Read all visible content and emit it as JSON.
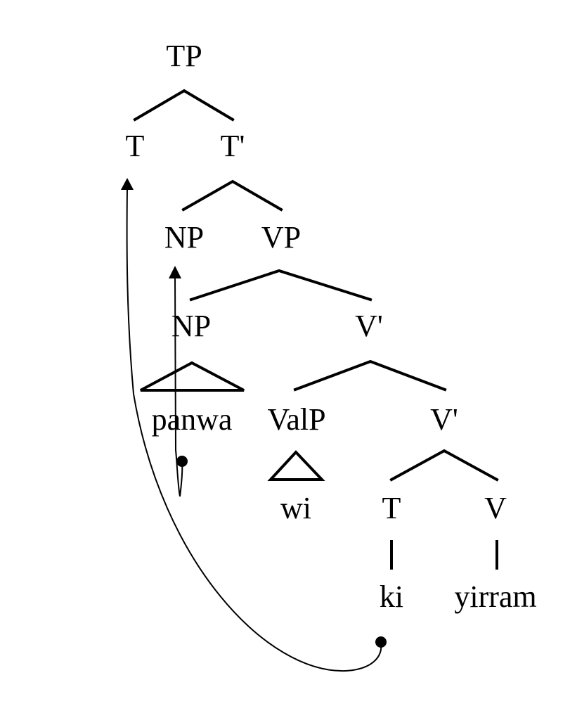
{
  "tree": {
    "nodes": {
      "tp": "TP",
      "t_head": "T",
      "t_bar": "T'",
      "np_upper": "NP",
      "vp": "VP",
      "np_lower": "NP",
      "v_bar_upper": "V'",
      "valp": "ValP",
      "v_bar_lower": "V'",
      "t_lower": "T",
      "v": "V"
    },
    "words": {
      "panwa": "panwa",
      "wi": "wi",
      "ki": "ki",
      "yirram": "yirram"
    }
  },
  "movements": [
    {
      "from": "trace-in-NP",
      "to": "NP (spec-TP)"
    },
    {
      "from": "ki",
      "to": "T"
    }
  ]
}
